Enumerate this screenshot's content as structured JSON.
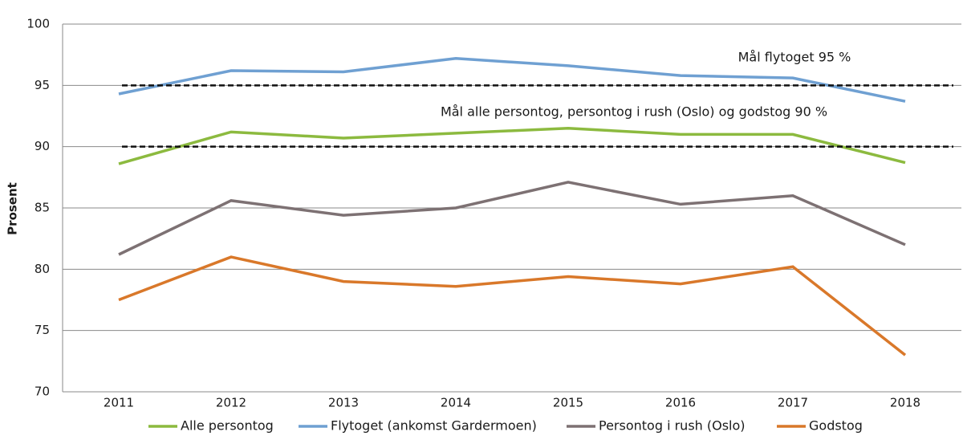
{
  "chart_data": {
    "type": "line",
    "y_label": "Prosent",
    "categories": [
      "2011",
      "2012",
      "2013",
      "2014",
      "2015",
      "2016",
      "2017",
      "2018"
    ],
    "series": [
      {
        "name": "Alle persontog",
        "color": "#8cba3f",
        "values": [
          88.6,
          91.2,
          90.7,
          91.1,
          91.5,
          91.0,
          91.0,
          88.7
        ]
      },
      {
        "name": "Flytoget (ankomst Gardermoen)",
        "color": "#6fa0d2",
        "values": [
          94.3,
          96.2,
          96.1,
          97.2,
          96.6,
          95.8,
          95.6,
          93.7
        ]
      },
      {
        "name": "Persontog i rush (Oslo)",
        "color": "#7d7173",
        "values": [
          81.2,
          85.6,
          84.4,
          85.0,
          87.1,
          85.3,
          86.0,
          82.0
        ]
      },
      {
        "name": "Godstog",
        "color": "#d9782a",
        "values": [
          77.5,
          81.0,
          79.0,
          78.6,
          79.4,
          78.8,
          80.2,
          73.0
        ]
      }
    ],
    "reference_lines": [
      {
        "value": 95,
        "label": "Mål flytoget 95 %"
      },
      {
        "value": 90,
        "label": "Mål alle persontog, persontog i rush (Oslo) og godstog 90 %"
      }
    ],
    "ylim": [
      70,
      100
    ],
    "yticks": [
      70,
      75,
      80,
      85,
      90,
      95,
      100
    ],
    "grid": true
  }
}
